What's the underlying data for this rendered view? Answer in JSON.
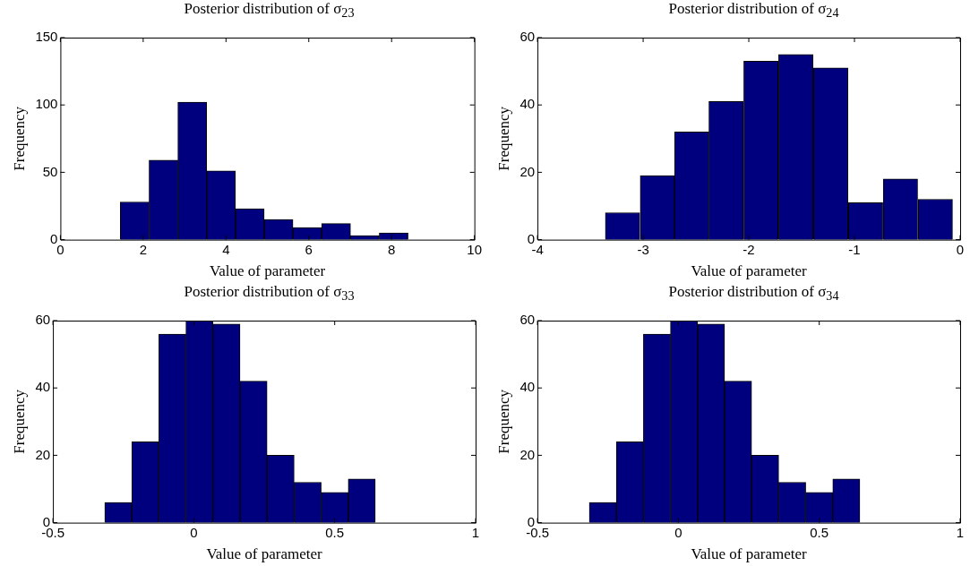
{
  "chart_data": [
    {
      "type": "histogram",
      "title": "Posterior distribution of σ$_{23}$",
      "xlabel": "Value of parameter",
      "ylabel": "Frequency",
      "color": "#00007f",
      "bins": [
        1.45,
        2.14,
        2.84,
        3.53,
        4.23,
        4.92,
        5.62,
        6.31,
        7.01,
        7.7,
        8.4
      ],
      "values": [
        28,
        59,
        102,
        51,
        23,
        15,
        9,
        12,
        3,
        5
      ],
      "xlim": [
        0,
        10
      ],
      "xticks": [
        0,
        2,
        4,
        6,
        8,
        10
      ],
      "ylim": [
        0,
        150
      ],
      "yticks": [
        0,
        50,
        100,
        150
      ]
    },
    {
      "type": "histogram",
      "title": "Posterior distribution of σ$_{24}$",
      "xlabel": "Value of parameter",
      "ylabel": "Frequency",
      "color": "#00007f",
      "bins": [
        -3.36,
        -3.03,
        -2.7,
        -2.38,
        -2.05,
        -1.72,
        -1.39,
        -1.06,
        -0.73,
        -0.4,
        -0.07
      ],
      "values": [
        8,
        19,
        32,
        41,
        53,
        55,
        51,
        11,
        18,
        12
      ],
      "xlim": [
        -4,
        0
      ],
      "xticks": [
        -4,
        -3,
        -2,
        -1,
        0
      ],
      "ylim": [
        0,
        60
      ],
      "yticks": [
        0,
        20,
        40,
        60
      ]
    },
    {
      "type": "histogram",
      "title": "Posterior distribution of σ$_{33}$",
      "xlabel": "Value of parameter",
      "ylabel": "Frequency",
      "color": "#00007f",
      "bins": [
        -0.316,
        -0.22,
        -0.124,
        -0.028,
        0.068,
        0.164,
        0.26,
        0.356,
        0.452,
        0.548,
        0.644
      ],
      "values": [
        6,
        24,
        56,
        60,
        59,
        42,
        20,
        12,
        9,
        13
      ],
      "xlim": [
        -0.5,
        1
      ],
      "xticks": [
        -0.5,
        0,
        0.5,
        1
      ],
      "ylim": [
        0,
        60
      ],
      "yticks": [
        0,
        20,
        40,
        60
      ]
    },
    {
      "type": "histogram",
      "title": "Posterior distribution of σ$_{34}$",
      "xlabel": "Value of parameter",
      "ylabel": "Frequency",
      "color": "#00007f",
      "bins": [
        -0.316,
        -0.22,
        -0.124,
        -0.028,
        0.068,
        0.164,
        0.26,
        0.356,
        0.452,
        0.548,
        0.644
      ],
      "values": [
        6,
        24,
        56,
        60,
        59,
        42,
        20,
        12,
        9,
        13
      ],
      "xlim": [
        -0.5,
        1
      ],
      "xticks": [
        -0.5,
        0,
        0.5,
        1
      ],
      "ylim": [
        0,
        60
      ],
      "yticks": [
        0,
        20,
        40,
        60
      ]
    }
  ]
}
